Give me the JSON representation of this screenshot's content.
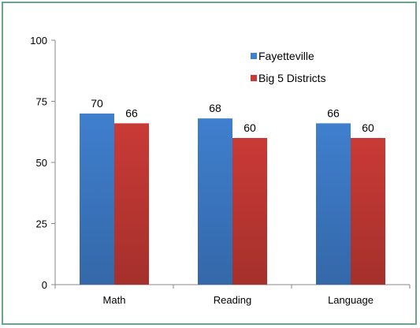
{
  "chart_data": {
    "type": "bar",
    "categories": [
      "Math",
      "Reading",
      "Language"
    ],
    "series": [
      {
        "name": "Fayetteville",
        "values": [
          70,
          68,
          66
        ],
        "color": "#3f7fce"
      },
      {
        "name": "Big 5 Districts",
        "values": [
          66,
          60,
          60
        ],
        "color": "#c93a36"
      }
    ],
    "ylim": [
      0,
      100
    ],
    "yticks": [
      0,
      25,
      50,
      75,
      100
    ],
    "data_labels": true,
    "grid": false,
    "legend_position": "top-right",
    "title": "",
    "xlabel": "",
    "ylabel": ""
  }
}
